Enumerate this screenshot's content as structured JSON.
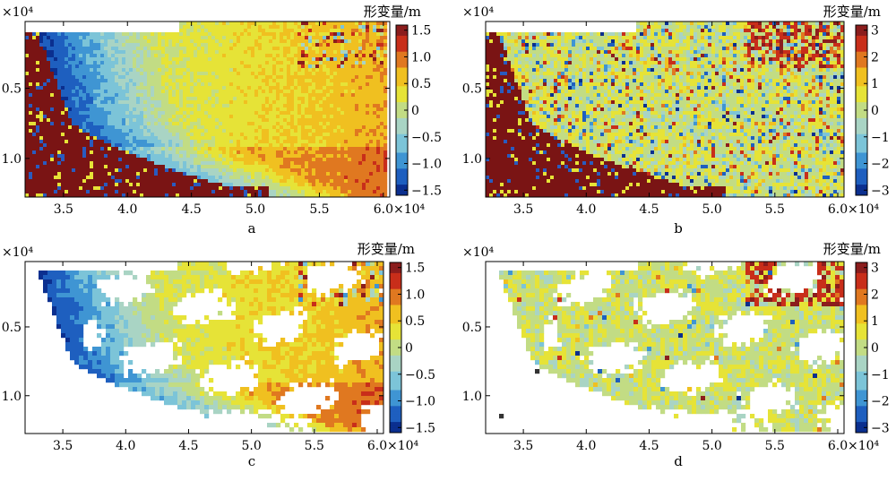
{
  "chart_data": [
    {
      "type": "heatmap",
      "panel_label": "a",
      "x_exponent": "×10⁴",
      "y_exponent": "×10⁴",
      "x_ticks": [
        "3.5",
        "4.0",
        "4.5",
        "5.0",
        "5.5",
        "6.0"
      ],
      "y_ticks": [
        "0.5",
        "1.0"
      ],
      "colorbar_title": "形变量/m",
      "colorbar_ticks": [
        "1.5",
        "1.0",
        "0.5",
        "0",
        "−0.5",
        "−1.0",
        "−1.5"
      ],
      "clim": [
        -1.5,
        1.5
      ],
      "coverage": "dense"
    },
    {
      "type": "heatmap",
      "panel_label": "b",
      "x_exponent": "×10⁴",
      "y_exponent": "×10⁴",
      "x_ticks": [
        "3.5",
        "4.0",
        "4.5",
        "5.0",
        "5.5",
        "6.0"
      ],
      "y_ticks": [
        "0.5",
        "1.0"
      ],
      "colorbar_title": "形变量/m",
      "colorbar_ticks": [
        "3",
        "2",
        "1",
        "0",
        "−1",
        "−2",
        "−3"
      ],
      "clim": [
        -3,
        3
      ],
      "coverage": "dense"
    },
    {
      "type": "heatmap",
      "panel_label": "c",
      "x_exponent": "×10⁴",
      "y_exponent": "×10⁴",
      "x_ticks": [
        "3.5",
        "4.0",
        "4.5",
        "5.0",
        "5.5",
        "6.0"
      ],
      "y_ticks": [
        "0.5",
        "1.0"
      ],
      "colorbar_title": "形变量/m",
      "colorbar_ticks": [
        "1.5",
        "1.0",
        "0.5",
        "0",
        "−0.5",
        "−1.0",
        "−1.5"
      ],
      "clim": [
        -1.5,
        1.5
      ],
      "coverage": "sparse"
    },
    {
      "type": "heatmap",
      "panel_label": "d",
      "x_exponent": "×10⁴",
      "y_exponent": "×10⁴",
      "x_ticks": [
        "3.5",
        "4.0",
        "4.5",
        "5.0",
        "5.5",
        "6.0"
      ],
      "y_ticks": [
        "0.5",
        "1.0"
      ],
      "colorbar_title": "形变量/m",
      "colorbar_ticks": [
        "3",
        "2",
        "1",
        "0",
        "−1",
        "−2",
        "−3"
      ],
      "clim": [
        -3,
        3
      ],
      "coverage": "sparse"
    }
  ],
  "colormap": [
    "#0b2f8f",
    "#1e5fbf",
    "#3f95d3",
    "#7cc4d8",
    "#a9d4c4",
    "#c2dc84",
    "#e6e337",
    "#f0c020",
    "#e07820",
    "#c82e1a",
    "#8b1d1d"
  ]
}
